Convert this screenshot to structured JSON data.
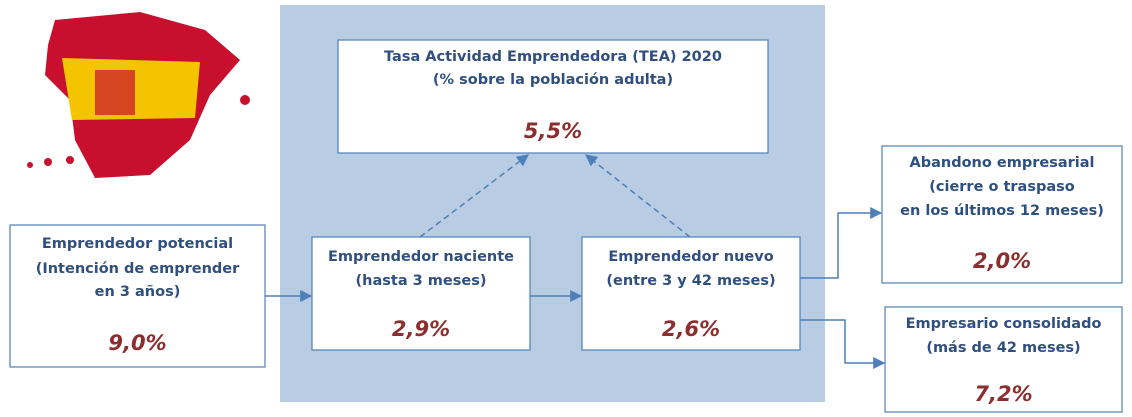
{
  "nodes": [
    {
      "lines": [
        "Tasa Actividad Emprendedora (TEA) 2020",
        "(% sobre la población adulta)"
      ],
      "value": "5,5%"
    },
    {
      "lines": [
        "Emprendedor potencial",
        "(Intención de emprender",
        "en 3 años)"
      ],
      "value": "9,0%"
    },
    {
      "lines": [
        "Emprendedor naciente",
        "(hasta 3 meses)"
      ],
      "value": "2,9%"
    },
    {
      "lines": [
        "Emprendedor nuevo",
        "(entre 3 y 42 meses)"
      ],
      "value": "2,6%"
    },
    {
      "lines": [
        "Abandono empresarial",
        "(cierre o traspaso",
        "en los últimos 12 meses)"
      ],
      "value": "2,0%"
    },
    {
      "lines": [
        "Empresario consolidado",
        "(más de 42 meses)"
      ],
      "value": "7,2%"
    }
  ]
}
